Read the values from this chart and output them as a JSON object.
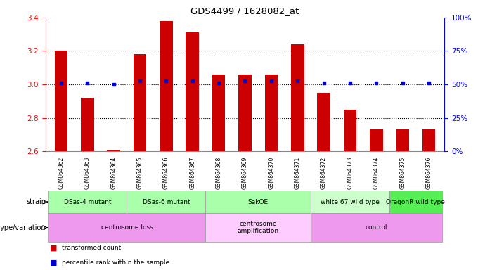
{
  "title": "GDS4499 / 1628082_at",
  "samples": [
    "GSM864362",
    "GSM864363",
    "GSM864364",
    "GSM864365",
    "GSM864366",
    "GSM864367",
    "GSM864368",
    "GSM864369",
    "GSM864370",
    "GSM864371",
    "GSM864372",
    "GSM864373",
    "GSM864374",
    "GSM864375",
    "GSM864376"
  ],
  "bar_values": [
    3.2,
    2.92,
    2.61,
    3.18,
    3.38,
    3.31,
    3.06,
    3.06,
    3.06,
    3.24,
    2.95,
    2.85,
    2.73,
    2.73,
    2.73
  ],
  "percentile_values": [
    3.01,
    3.01,
    3.0,
    3.02,
    3.02,
    3.02,
    3.01,
    3.02,
    3.02,
    3.02,
    3.01,
    3.01,
    3.01,
    3.01,
    3.01
  ],
  "ymin": 2.6,
  "ymax": 3.4,
  "yticks_left": [
    2.6,
    2.8,
    3.0,
    3.2,
    3.4
  ],
  "yticks_right": [
    0,
    25,
    50,
    75,
    100
  ],
  "bar_bottom": 2.6,
  "bar_color": "#cc0000",
  "blue_color": "#0000cc",
  "hgrid_vals": [
    2.8,
    3.0,
    3.2
  ],
  "strain_groups": [
    {
      "label": "DSas-4 mutant",
      "start": 0,
      "end": 2,
      "color": "#aaffaa"
    },
    {
      "label": "DSas-6 mutant",
      "start": 3,
      "end": 5,
      "color": "#aaffaa"
    },
    {
      "label": "SakOE",
      "start": 6,
      "end": 9,
      "color": "#aaffaa"
    },
    {
      "label": "white 67 wild type",
      "start": 10,
      "end": 12,
      "color": "#ccffcc"
    },
    {
      "label": "OregonR wild type",
      "start": 13,
      "end": 14,
      "color": "#55ee55"
    }
  ],
  "genotype_groups": [
    {
      "label": "centrosome loss",
      "start": 0,
      "end": 5,
      "color": "#ee99ee"
    },
    {
      "label": "centrosome\namplification",
      "start": 6,
      "end": 9,
      "color": "#ffccff"
    },
    {
      "label": "control",
      "start": 10,
      "end": 14,
      "color": "#ee99ee"
    }
  ],
  "fig_width": 6.8,
  "fig_height": 3.84
}
